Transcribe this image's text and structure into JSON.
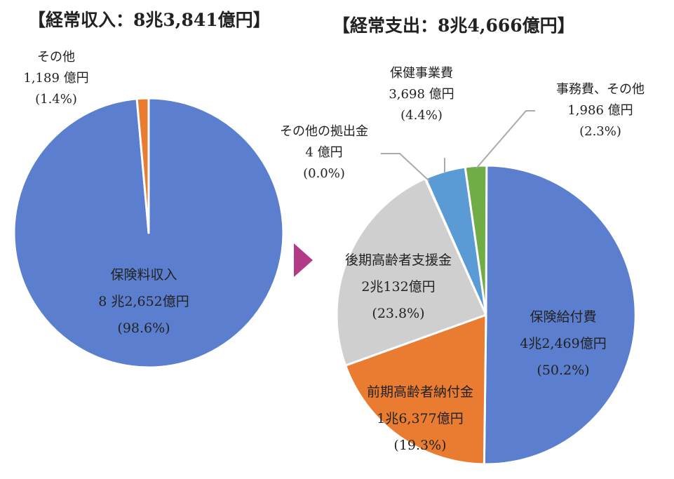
{
  "chart_data": [
    {
      "type": "pie",
      "title": "【経常収入：8兆3,841億円】",
      "start": "top",
      "direction": "clockwise",
      "slices": [
        {
          "name": "保険料収入",
          "amount": "8 兆2,652億円",
          "percent": "(98.6%)",
          "value": 98.6,
          "color": "#5b7fce"
        },
        {
          "name": "その他",
          "amount": "1,189 億円",
          "percent": "(1.4%)",
          "value": 1.4,
          "color": "#e97c30"
        }
      ]
    },
    {
      "type": "pie",
      "title": "【経常支出：8兆4,666億円】",
      "start": "top",
      "direction": "clockwise",
      "slices": [
        {
          "name": "保険給付費",
          "amount": "4兆2,469億円",
          "percent": "(50.2%)",
          "value": 50.2,
          "color": "#5b7fce"
        },
        {
          "name": "前期高齢者納付金",
          "amount": "1兆6,377億円",
          "percent": "(19.3%)",
          "value": 19.3,
          "color": "#e97c30"
        },
        {
          "name": "後期高齢者支援金",
          "amount": "2兆132億円",
          "percent": "(23.8%)",
          "value": 23.8,
          "color": "#cfcfcf"
        },
        {
          "name": "その他の拠出金",
          "amount": "4 億円",
          "percent": "(0.0%)",
          "value": 0.0,
          "color": "#f3c01b"
        },
        {
          "name": "保健事業費",
          "amount": "3,698 億円",
          "percent": "(4.4%)",
          "value": 4.4,
          "color": "#5b9bd5"
        },
        {
          "name": "事務費、その他",
          "amount": "1,986 億円",
          "percent": "(2.3%)",
          "value": 2.3,
          "color": "#70ad47"
        }
      ]
    }
  ],
  "arrow_color": "#b23a86",
  "leader_line_color": "#aaaaaa"
}
